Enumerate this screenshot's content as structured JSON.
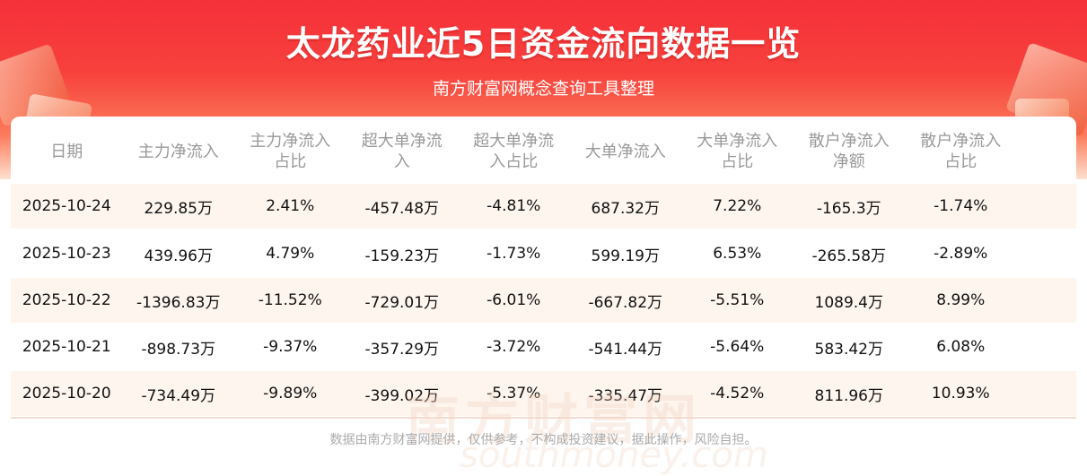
{
  "header": {
    "title": "太龙药业近5日资金流向数据一览",
    "subtitle": "南方财富网概念查询工具整理"
  },
  "table": {
    "columns": [
      "日期",
      "主力净流入",
      "主力净流入\n占比",
      "超大单净流\n入",
      "超大单净流\n入占比",
      "大单净流入",
      "大单净流入\n占比",
      "散户净流入\n净额",
      "散户净流入\n占比"
    ],
    "rows": [
      [
        "2025-10-24",
        "229.85万",
        "2.41%",
        "-457.48万",
        "-4.81%",
        "687.32万",
        "7.22%",
        "-165.3万",
        "-1.74%"
      ],
      [
        "2025-10-23",
        "439.96万",
        "4.79%",
        "-159.23万",
        "-1.73%",
        "599.19万",
        "6.53%",
        "-265.58万",
        "-2.89%"
      ],
      [
        "2025-10-22",
        "-1396.83万",
        "-11.52%",
        "-729.01万",
        "-6.01%",
        "-667.82万",
        "-5.51%",
        "1089.4万",
        "8.99%"
      ],
      [
        "2025-10-21",
        "-898.73万",
        "-9.37%",
        "-357.29万",
        "-3.72%",
        "-541.44万",
        "-5.64%",
        "583.42万",
        "6.08%"
      ],
      [
        "2025-10-20",
        "-734.49万",
        "-9.89%",
        "-399.02万",
        "-5.37%",
        "-335.47万",
        "-4.52%",
        "811.96万",
        "10.93%"
      ]
    ]
  },
  "watermark": {
    "cn": "南方财富网",
    "en": "southmoney.com"
  },
  "footer": "数据由南方财富网提供，仅供参考，不构成投资建议，据此操作，风险自担。",
  "colors": {
    "brand": "#f5303a",
    "row_alt": "#fdf5ee"
  }
}
